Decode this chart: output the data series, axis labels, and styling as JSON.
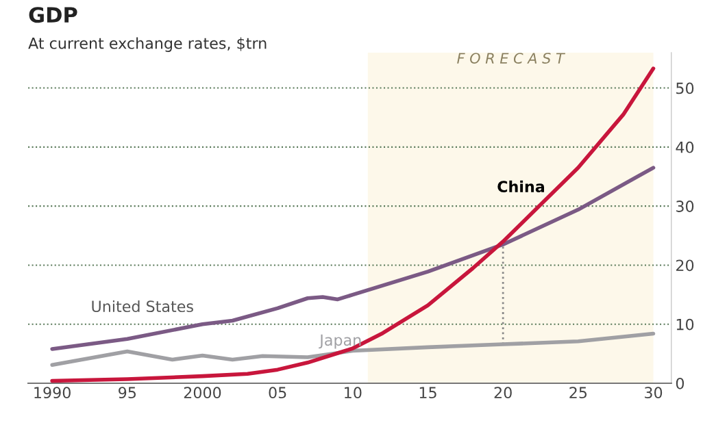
{
  "chart_data": {
    "type": "line",
    "title": "GDP",
    "subtitle": "At current exchange rates, $trn",
    "xlim": [
      1988.4,
      2031.2
    ],
    "ylim": [
      0,
      56
    ],
    "xticks": [
      1990,
      {
        "value": 1995,
        "label": "95"
      },
      2000,
      {
        "value": 2005,
        "label": "05"
      },
      {
        "value": 2010,
        "label": "10"
      },
      {
        "value": 2015,
        "label": "15"
      },
      {
        "value": 2020,
        "label": "20"
      },
      {
        "value": 2025,
        "label": "25"
      },
      {
        "value": 2030,
        "label": "30"
      }
    ],
    "yticks": [
      0,
      10,
      20,
      30,
      40,
      50
    ],
    "grid": "y",
    "legend": false,
    "line_style": "solid",
    "marker": "none",
    "bands": [
      {
        "axis": "x",
        "from": 2011,
        "to": 2030,
        "label": "F O R E C A S T",
        "color": "#fdf8ea"
      }
    ],
    "ref_lines": [
      {
        "axis": "x",
        "value": 2020,
        "label": null,
        "line_style": "dotted",
        "color": "#888888"
      }
    ],
    "series": [
      {
        "name": "United States",
        "color": "#7b5a85",
        "x": [
          1990,
          1995,
          2000,
          2002,
          2005,
          2007,
          2008,
          2009,
          2010,
          2015,
          2020,
          2025,
          2030
        ],
        "values": [
          5.8,
          7.5,
          10.0,
          10.6,
          12.7,
          14.4,
          14.6,
          14.2,
          15.0,
          18.9,
          23.5,
          29.4,
          36.5
        ]
      },
      {
        "name": "Japan",
        "color": "#a0a0a4",
        "x": [
          1990,
          1995,
          1998,
          2000,
          2002,
          2004,
          2007,
          2010,
          2015,
          2020,
          2025,
          2030
        ],
        "values": [
          3.1,
          5.4,
          4.0,
          4.7,
          4.0,
          4.6,
          4.4,
          5.5,
          6.1,
          6.6,
          7.1,
          8.4
        ]
      },
      {
        "name": "China",
        "color": "#c8163c",
        "x": [
          1990,
          1995,
          2000,
          2003,
          2005,
          2007,
          2009,
          2010,
          2012,
          2015,
          2018,
          2020,
          2022,
          2025,
          2028,
          2030
        ],
        "values": [
          0.4,
          0.7,
          1.2,
          1.6,
          2.3,
          3.5,
          5.1,
          5.9,
          8.5,
          13.2,
          19.5,
          24.0,
          29.0,
          36.5,
          45.5,
          53.3
        ]
      }
    ]
  }
}
